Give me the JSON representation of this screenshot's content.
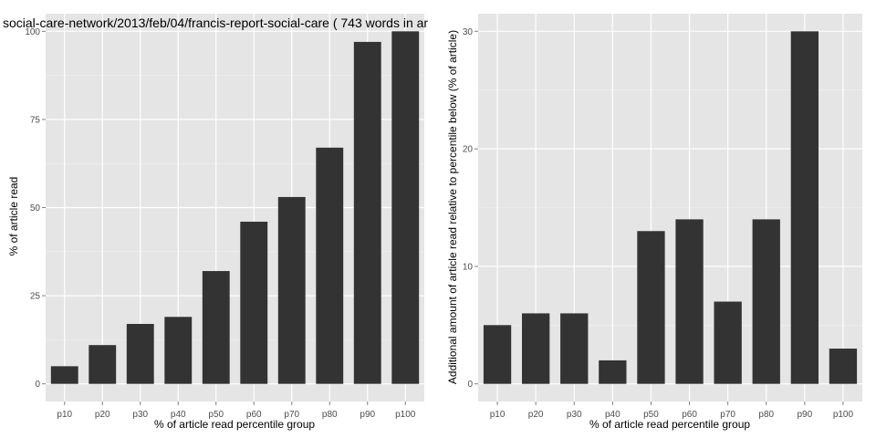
{
  "chart_data": [
    {
      "type": "bar",
      "title": "social-care-network/2013/feb/04/francis-report-social-care ( 743 words in ar",
      "xlabel": "% of article read percentile group",
      "ylabel": "% of article read",
      "categories": [
        "p10",
        "p20",
        "p30",
        "p40",
        "p50",
        "p60",
        "p70",
        "p80",
        "p90",
        "p100"
      ],
      "values": [
        5,
        11,
        17,
        19,
        32,
        46,
        53,
        67,
        97,
        100
      ],
      "yticks": [
        0,
        25,
        50,
        75,
        100
      ],
      "ylim": [
        -5,
        105
      ],
      "grid": true,
      "bar_color": "#333333",
      "panel_color": "#e5e5e5"
    },
    {
      "type": "bar",
      "title": "",
      "xlabel": "% of article read percentile group",
      "ylabel": "Additional amount of article read relative to percentile below (% of article)",
      "categories": [
        "p10",
        "p20",
        "p30",
        "p40",
        "p50",
        "p60",
        "p70",
        "p80",
        "p90",
        "p100"
      ],
      "values": [
        5,
        6,
        6,
        2,
        13,
        14,
        7,
        14,
        30,
        3
      ],
      "yticks": [
        0,
        10,
        20,
        30
      ],
      "ylim": [
        -1.5,
        31.5
      ],
      "grid": true,
      "bar_color": "#333333",
      "panel_color": "#e5e5e5"
    }
  ]
}
